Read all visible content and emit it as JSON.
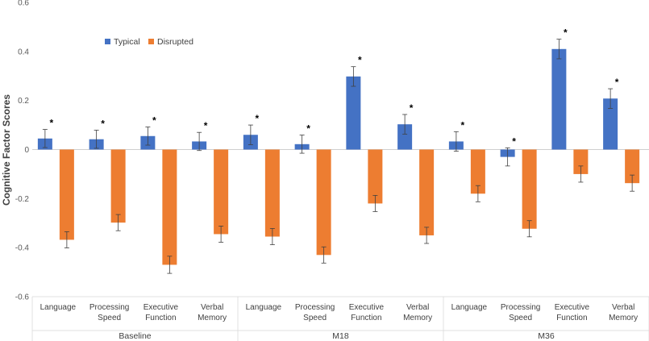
{
  "chart_data": {
    "type": "bar",
    "title": "",
    "xlabel": "",
    "ylabel": "Cognitive Factor Scores",
    "ylim": [
      -0.6,
      0.6
    ],
    "yticks": [
      -0.6,
      -0.4,
      -0.2,
      0,
      0.2,
      0.4,
      0.6
    ],
    "ytick_labels": [
      "-0.6",
      "-0.4",
      "-0.2",
      "0",
      "0.2",
      "0.4",
      "0.6"
    ],
    "legend_position": "top-left",
    "groups": [
      "Baseline",
      "M18",
      "M36"
    ],
    "categories": [
      {
        "group": "Baseline",
        "lines": [
          "Language"
        ]
      },
      {
        "group": "Baseline",
        "lines": [
          "Processing",
          "Speed"
        ]
      },
      {
        "group": "Baseline",
        "lines": [
          "Executive",
          "Function"
        ]
      },
      {
        "group": "Baseline",
        "lines": [
          "Verbal",
          "Memory"
        ]
      },
      {
        "group": "M18",
        "lines": [
          "Language"
        ]
      },
      {
        "group": "M18",
        "lines": [
          "Processing",
          "Speed"
        ]
      },
      {
        "group": "M18",
        "lines": [
          "Executive",
          "Function"
        ]
      },
      {
        "group": "M18",
        "lines": [
          "Verbal",
          "Memory"
        ]
      },
      {
        "group": "M36",
        "lines": [
          "Language"
        ]
      },
      {
        "group": "M36",
        "lines": [
          "Processing",
          "Speed"
        ]
      },
      {
        "group": "M36",
        "lines": [
          "Executive",
          "Function"
        ]
      },
      {
        "group": "M36",
        "lines": [
          "Verbal",
          "Memory"
        ]
      }
    ],
    "series": [
      {
        "name": "Typical",
        "color": "#4472C4",
        "values": [
          0.045,
          0.042,
          0.055,
          0.033,
          0.06,
          0.022,
          0.298,
          0.103,
          0.033,
          -0.03,
          0.41,
          0.208
        ],
        "errors": [
          0.037,
          0.037,
          0.037,
          0.037,
          0.04,
          0.037,
          0.04,
          0.04,
          0.04,
          0.037,
          0.04,
          0.04
        ]
      },
      {
        "name": "Disrupted",
        "color": "#ED7D31",
        "values": [
          -0.368,
          -0.298,
          -0.47,
          -0.345,
          -0.355,
          -0.43,
          -0.22,
          -0.35,
          -0.18,
          -0.323,
          -0.1,
          -0.137
        ],
        "errors": [
          0.033,
          0.033,
          0.035,
          0.033,
          0.033,
          0.033,
          0.033,
          0.033,
          0.033,
          0.033,
          0.033,
          0.033
        ]
      }
    ],
    "annotations": [
      "*",
      "*",
      "*",
      "*",
      "*",
      "*",
      "*",
      "*",
      "*",
      "*",
      "*",
      "*"
    ]
  }
}
